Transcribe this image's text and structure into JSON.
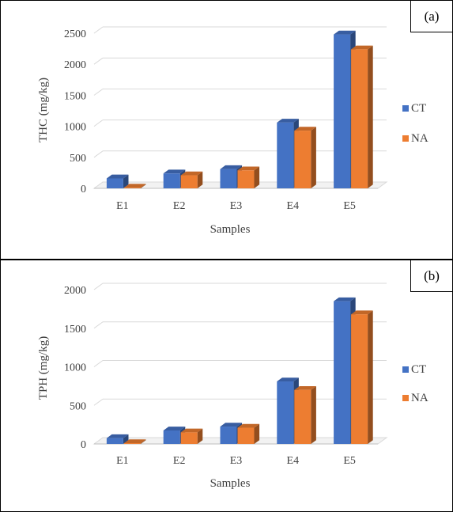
{
  "colors": {
    "CT": "#4472C4",
    "NA": "#ED7D31"
  },
  "chart_data": [
    {
      "type": "bar",
      "panel_label": "(a)",
      "categories": [
        "E1",
        "E2",
        "E3",
        "E4",
        "E5"
      ],
      "series": [
        {
          "name": "CT",
          "values": [
            160,
            240,
            310,
            1060,
            2480
          ]
        },
        {
          "name": "NA",
          "values": [
            10,
            210,
            290,
            930,
            2240
          ]
        }
      ],
      "xlabel": "Samples",
      "ylabel": "THC (mg/kg)",
      "ylim": [
        0,
        2500
      ],
      "yticks": [
        "0",
        "500",
        "1000",
        "1500",
        "2000",
        "2500"
      ],
      "grid": true,
      "legend": "right"
    },
    {
      "type": "bar",
      "panel_label": "(b)",
      "categories": [
        "E1",
        "E2",
        "E3",
        "E4",
        "E5"
      ],
      "series": [
        {
          "name": "CT",
          "values": [
            75,
            175,
            225,
            810,
            1850
          ]
        },
        {
          "name": "NA",
          "values": [
            10,
            150,
            210,
            700,
            1680
          ]
        }
      ],
      "xlabel": "Samples",
      "ylabel": "TPH (mg/kg)",
      "ylim": [
        0,
        2000
      ],
      "yticks": [
        "0",
        "500",
        "1000",
        "1500",
        "2000"
      ],
      "grid": true,
      "legend": "right"
    }
  ]
}
